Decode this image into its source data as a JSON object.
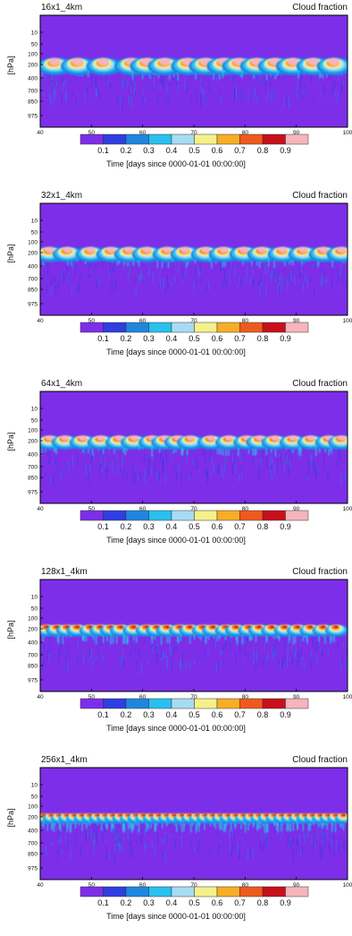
{
  "chart_data": [
    {
      "type": "heatmap",
      "title": "16x1_4km",
      "variable": "Cloud fraction",
      "ylabel": "[hPa]",
      "xlabel": "Time [days since 0000-01-01 00:00:00]",
      "x_ticks": [
        40,
        50,
        60,
        70,
        80,
        90,
        100
      ],
      "xlim": [
        40,
        100
      ],
      "y_ticks": [
        "10",
        "50",
        "100",
        "200",
        "400",
        "700",
        "850",
        "975"
      ],
      "colorbar_labels": [
        "0.1",
        "0.2",
        "0.3",
        "0.4",
        "0.5",
        "0.6",
        "0.7",
        "0.8",
        "0.9"
      ],
      "colorbar_colors": [
        "#7d2ee8",
        "#2e3ee0",
        "#1f86e0",
        "#29c0f0",
        "#a6dcf4",
        "#f4f08a",
        "#f7ad26",
        "#ef5a1c",
        "#c8101c",
        "#f6b4bc"
      ],
      "cloud_events": [
        43,
        47.5,
        52.5,
        58,
        61,
        64.5,
        69,
        72.5,
        76,
        79,
        82.5,
        86,
        89.5,
        93.5,
        97.5
      ]
    },
    {
      "type": "heatmap",
      "title": "32x1_4km",
      "variable": "Cloud fraction",
      "ylabel": "[hPa]",
      "xlabel": "Time [days since 0000-01-01 00:00:00]",
      "x_ticks": [
        40,
        50,
        60,
        70,
        80,
        90,
        100
      ],
      "xlim": [
        40,
        100
      ],
      "y_ticks": [
        "10",
        "50",
        "100",
        "200",
        "400",
        "700",
        "850",
        "975"
      ],
      "colorbar_labels": [
        "0.1",
        "0.2",
        "0.3",
        "0.4",
        "0.5",
        "0.6",
        "0.7",
        "0.8",
        "0.9"
      ],
      "colorbar_colors": [
        "#7d2ee8",
        "#2e3ee0",
        "#1f86e0",
        "#29c0f0",
        "#a6dcf4",
        "#f4f08a",
        "#f7ad26",
        "#ef5a1c",
        "#c8101c",
        "#f6b4bc"
      ],
      "cloud_events": [
        42,
        45.5,
        50,
        54,
        57.5,
        61,
        65,
        68.5,
        72.5,
        76,
        80,
        83.5,
        87.5,
        91.5,
        95.5,
        99
      ]
    },
    {
      "type": "heatmap",
      "title": "64x1_4km",
      "variable": "Cloud fraction",
      "ylabel": "[hPa]",
      "xlabel": "Time [days since 0000-01-01 00:00:00]",
      "x_ticks": [
        40,
        50,
        60,
        70,
        80,
        90,
        100
      ],
      "xlim": [
        40,
        100
      ],
      "y_ticks": [
        "10",
        "50",
        "100",
        "200",
        "400",
        "700",
        "850",
        "975"
      ],
      "colorbar_labels": [
        "0.1",
        "0.2",
        "0.3",
        "0.4",
        "0.5",
        "0.6",
        "0.7",
        "0.8",
        "0.9"
      ],
      "colorbar_colors": [
        "#7d2ee8",
        "#2e3ee0",
        "#1f86e0",
        "#29c0f0",
        "#a6dcf4",
        "#f4f08a",
        "#f7ad26",
        "#ef5a1c",
        "#c8101c",
        "#f6b4bc"
      ],
      "cloud_events": [
        42,
        45,
        48.5,
        52,
        55.5,
        58.5,
        62,
        64.5,
        67,
        69.5,
        73.5,
        77,
        80.5,
        83,
        86,
        89.5,
        93,
        96.5,
        99
      ]
    },
    {
      "type": "heatmap",
      "title": "128x1_4km",
      "variable": "Cloud fraction",
      "ylabel": "[hPa]",
      "xlabel": "Time [days since 0000-01-01 00:00:00]",
      "x_ticks": [
        40,
        50,
        60,
        70,
        80,
        90,
        100
      ],
      "xlim": [
        40,
        100
      ],
      "y_ticks": [
        "10",
        "50",
        "100",
        "200",
        "400",
        "700",
        "850",
        "975"
      ],
      "colorbar_labels": [
        "0.1",
        "0.2",
        "0.3",
        "0.4",
        "0.5",
        "0.6",
        "0.7",
        "0.8",
        "0.9"
      ],
      "colorbar_colors": [
        "#7d2ee8",
        "#2e3ee0",
        "#1f86e0",
        "#29c0f0",
        "#a6dcf4",
        "#f4f08a",
        "#f7ad26",
        "#ef5a1c",
        "#c8101c",
        "#f6b4bc"
      ],
      "cloud_events": [
        41.5,
        43.5,
        45.5,
        47.5,
        50,
        52,
        54,
        56,
        58.5,
        61,
        63,
        65,
        67.5,
        69.5,
        72,
        74,
        76.5,
        78.5,
        81,
        83,
        85.5,
        88,
        90.5,
        93,
        95.5,
        98
      ]
    },
    {
      "type": "heatmap",
      "title": "256x1_4km",
      "variable": "Cloud fraction",
      "ylabel": "[hPa]",
      "xlabel": "Time [days since 0000-01-01 00:00:00]",
      "x_ticks": [
        40,
        50,
        60,
        70,
        80,
        90,
        100
      ],
      "xlim": [
        40,
        100
      ],
      "y_ticks": [
        "10",
        "50",
        "100",
        "200",
        "400",
        "700",
        "850",
        "975"
      ],
      "colorbar_labels": [
        "0.1",
        "0.2",
        "0.3",
        "0.4",
        "0.5",
        "0.6",
        "0.7",
        "0.8",
        "0.9"
      ],
      "colorbar_colors": [
        "#7d2ee8",
        "#2e3ee0",
        "#1f86e0",
        "#29c0f0",
        "#a6dcf4",
        "#f4f08a",
        "#f7ad26",
        "#ef5a1c",
        "#c8101c",
        "#f6b4bc"
      ],
      "cloud_events": [
        41,
        42.5,
        44,
        45.5,
        47,
        48.5,
        50,
        51.5,
        53,
        54.5,
        56,
        57.5,
        59,
        60.5,
        62,
        63.5,
        65,
        66.5,
        68,
        69.5,
        71,
        72.5,
        74,
        75.5,
        77,
        78.5,
        80,
        81.5,
        83,
        84.5,
        86,
        87.5,
        89,
        90.5,
        92,
        93.5,
        95,
        96.5,
        98,
        99.5
      ]
    }
  ]
}
